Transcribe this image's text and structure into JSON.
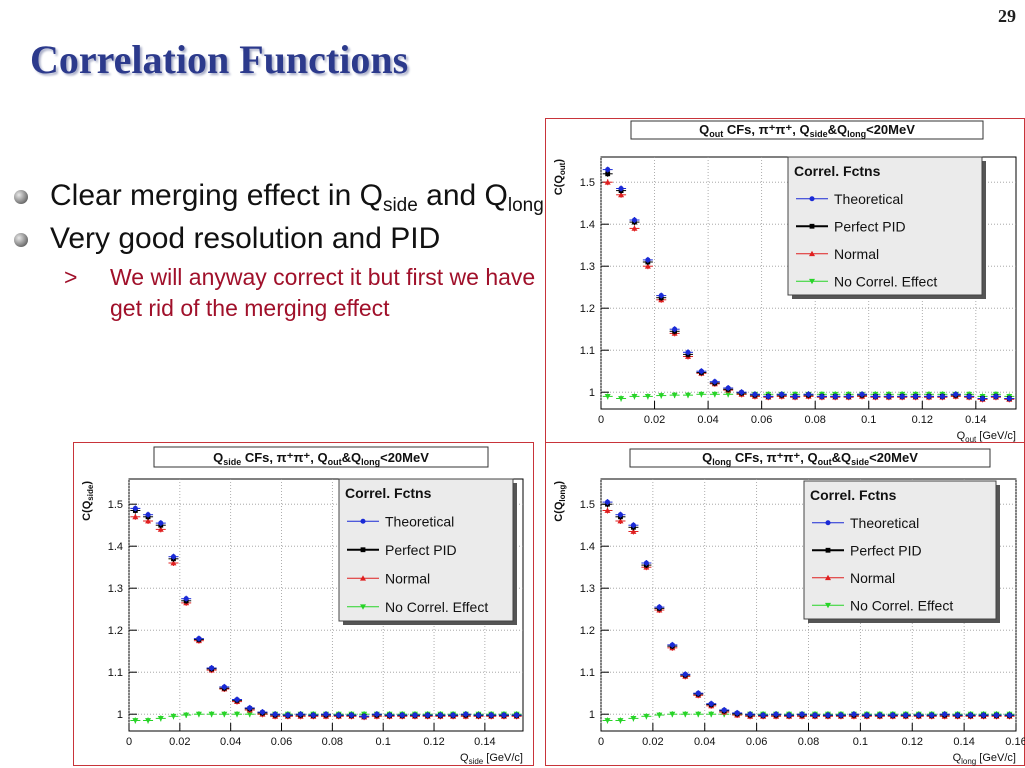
{
  "slide": {
    "number": "29",
    "title": "Correlation Functions",
    "bullets": [
      {
        "text_a": "Clear merging effect in Q",
        "sub_a": "side",
        "text_b": " and Q",
        "sub_b": "long"
      },
      {
        "text": "Very good resolution and PID"
      }
    ],
    "subbullet": {
      "marker": ">",
      "text": "We will anyway correct it but first we have get rid of the merging effect"
    }
  },
  "chart_data": [
    {
      "id": "qout",
      "type": "scatter",
      "title": {
        "q": "Q",
        "q_sub": "out",
        "mid": " CFs, π⁺π⁺, Q",
        "a_sub": "side",
        "amp": "&Q",
        "b_sub": "long",
        "end": "<20MeV"
      },
      "ylabel": {
        "pre": "C(Q",
        "sub": "out",
        "post": ")"
      },
      "xlabel": {
        "pre": "Q",
        "sub": "out",
        "post": " [GeV/c]"
      },
      "xlim": [
        0,
        0.155
      ],
      "ylim": [
        0.96,
        1.56
      ],
      "xticks": [
        0,
        0.02,
        0.04,
        0.06,
        0.08,
        0.1,
        0.12,
        0.14
      ],
      "xtick_labels": [
        "0",
        "0.02",
        "0.04",
        "0.06",
        "0.08",
        "0.1",
        "0.12",
        "0.14"
      ],
      "yticks": [
        1,
        1.1,
        1.2,
        1.3,
        1.4,
        1.5
      ],
      "ytick_labels": [
        "1",
        "1.1",
        "1.2",
        "1.3",
        "1.4",
        "1.5"
      ],
      "legend": {
        "title": "Correl. Fctns",
        "position": "top-right",
        "entries": [
          "Theoretical",
          "Perfect PID",
          "Normal",
          "No Correl. Effect"
        ]
      },
      "x": [
        0.0025,
        0.0075,
        0.0125,
        0.0175,
        0.0225,
        0.0275,
        0.0325,
        0.0375,
        0.0425,
        0.0475,
        0.0525,
        0.0575,
        0.0625,
        0.0675,
        0.0725,
        0.0775,
        0.0825,
        0.0875,
        0.0925,
        0.0975,
        0.1025,
        0.1075,
        0.1125,
        0.1175,
        0.1225,
        0.1275,
        0.1325,
        0.1375,
        0.1425,
        0.1475,
        0.1525
      ],
      "series": [
        {
          "name": "Theoretical",
          "color": "#1a2ad6",
          "marker": "circle",
          "values": [
            1.53,
            1.485,
            1.41,
            1.315,
            1.23,
            1.15,
            1.095,
            1.05,
            1.025,
            1.01,
            1.0,
            0.995,
            0.99,
            0.995,
            0.99,
            0.995,
            0.99,
            0.99,
            0.99,
            0.995,
            0.99,
            0.99,
            0.99,
            0.99,
            0.99,
            0.99,
            0.995,
            0.99,
            0.985,
            0.99,
            0.985
          ]
        },
        {
          "name": "Perfect PID",
          "color": "#000000",
          "marker": "square",
          "values": [
            1.52,
            1.48,
            1.405,
            1.31,
            1.225,
            1.145,
            1.09,
            1.047,
            1.022,
            1.007,
            0.998,
            0.993,
            0.99,
            0.993,
            0.99,
            0.993,
            0.99,
            0.99,
            0.99,
            0.993,
            0.99,
            0.99,
            0.99,
            0.99,
            0.99,
            0.99,
            0.993,
            0.99,
            0.985,
            0.99,
            0.985
          ]
        },
        {
          "name": "Normal",
          "color": "#e02020",
          "marker": "triangle-up",
          "values": [
            1.5,
            1.47,
            1.39,
            1.3,
            1.22,
            1.14,
            1.085,
            1.045,
            1.02,
            1.005,
            0.995,
            0.99,
            0.988,
            0.99,
            0.988,
            0.99,
            0.988,
            0.988,
            0.988,
            0.99,
            0.988,
            0.988,
            0.988,
            0.988,
            0.988,
            0.988,
            0.99,
            0.988,
            0.983,
            0.988,
            0.983
          ]
        },
        {
          "name": "No Correl. Effect",
          "color": "#28d428",
          "marker": "triangle-down",
          "values": [
            0.99,
            0.985,
            0.99,
            0.99,
            0.992,
            0.993,
            0.993,
            0.995,
            0.995,
            0.995,
            0.995,
            0.995,
            0.995,
            0.995,
            0.995,
            0.995,
            0.995,
            0.995,
            0.995,
            0.995,
            0.995,
            0.995,
            0.995,
            0.995,
            0.995,
            0.995,
            0.995,
            0.995,
            0.99,
            0.995,
            0.99
          ]
        }
      ]
    },
    {
      "id": "qside",
      "type": "scatter",
      "title": {
        "q": "Q",
        "q_sub": "side",
        "mid": " CFs, π⁺π⁺, Q",
        "a_sub": "out",
        "amp": "&Q",
        "b_sub": "long",
        "end": "<20MeV"
      },
      "ylabel": {
        "pre": "C(Q",
        "sub": "side",
        "post": ")"
      },
      "xlabel": {
        "pre": "Q",
        "sub": "side",
        "post": " [GeV/c]"
      },
      "xlim": [
        0,
        0.155
      ],
      "ylim": [
        0.96,
        1.56
      ],
      "xticks": [
        0,
        0.02,
        0.04,
        0.06,
        0.08,
        0.1,
        0.12,
        0.14
      ],
      "xtick_labels": [
        "0",
        "0.02",
        "0.04",
        "0.06",
        "0.08",
        "0.1",
        "0.12",
        "0.14"
      ],
      "yticks": [
        1,
        1.1,
        1.2,
        1.3,
        1.4,
        1.5
      ],
      "ytick_labels": [
        "1",
        "1.1",
        "1.2",
        "1.3",
        "1.4",
        "1.5"
      ],
      "legend": {
        "title": "Correl. Fctns",
        "position": "top-right",
        "entries": [
          "Theoretical",
          "Perfect PID",
          "Normal",
          "No Correl. Effect"
        ]
      },
      "x": [
        0.0025,
        0.0075,
        0.0125,
        0.0175,
        0.0225,
        0.0275,
        0.0325,
        0.0375,
        0.0425,
        0.0475,
        0.0525,
        0.0575,
        0.0625,
        0.0675,
        0.0725,
        0.0775,
        0.0825,
        0.0875,
        0.0925,
        0.0975,
        0.1025,
        0.1075,
        0.1125,
        0.1175,
        0.1225,
        0.1275,
        0.1325,
        0.1375,
        0.1425,
        0.1475,
        0.1525
      ],
      "series": [
        {
          "name": "Theoretical",
          "color": "#1a2ad6",
          "marker": "circle",
          "values": [
            1.49,
            1.475,
            1.455,
            1.375,
            1.275,
            1.18,
            1.11,
            1.065,
            1.035,
            1.015,
            1.005,
            1.0,
            0.998,
            1.0,
            0.998,
            1.0,
            0.998,
            0.998,
            0.995,
            1.0,
            0.998,
            0.998,
            0.998,
            0.998,
            0.998,
            0.998,
            1.0,
            0.998,
            0.998,
            0.998,
            0.998
          ]
        },
        {
          "name": "Perfect PID",
          "color": "#000000",
          "marker": "square",
          "values": [
            1.485,
            1.47,
            1.45,
            1.37,
            1.27,
            1.178,
            1.108,
            1.062,
            1.033,
            1.013,
            1.003,
            0.998,
            0.997,
            0.998,
            0.997,
            0.998,
            0.997,
            0.997,
            0.995,
            0.998,
            0.997,
            0.997,
            0.997,
            0.997,
            0.997,
            0.997,
            0.998,
            0.997,
            0.997,
            0.997,
            0.997
          ]
        },
        {
          "name": "Normal",
          "color": "#e02020",
          "marker": "triangle-up",
          "values": [
            1.47,
            1.46,
            1.44,
            1.36,
            1.265,
            1.175,
            1.105,
            1.06,
            1.03,
            1.01,
            1.0,
            0.995,
            0.995,
            0.995,
            0.995,
            0.995,
            0.995,
            0.995,
            0.993,
            0.995,
            0.995,
            0.995,
            0.995,
            0.995,
            0.995,
            0.995,
            0.995,
            0.995,
            0.995,
            0.995,
            0.995
          ]
        },
        {
          "name": "No Correl. Effect",
          "color": "#28d428",
          "marker": "triangle-down",
          "values": [
            0.985,
            0.985,
            0.99,
            0.995,
            0.998,
            1.0,
            1.0,
            1.0,
            1.0,
            1.0,
            1.0,
            1.0,
            1.0,
            1.0,
            1.0,
            1.0,
            1.0,
            1.0,
            1.0,
            1.0,
            1.0,
            1.0,
            1.0,
            1.0,
            1.0,
            1.0,
            1.0,
            1.0,
            1.0,
            1.0,
            1.0
          ]
        }
      ]
    },
    {
      "id": "qlong",
      "type": "scatter",
      "title": {
        "q": "Q",
        "q_sub": "long",
        "mid": " CFs, π⁺π⁺, Q",
        "a_sub": "out",
        "amp": "&Q",
        "b_sub": "side",
        "end": "<20MeV"
      },
      "ylabel": {
        "pre": "C(Q",
        "sub": "long",
        "post": ")"
      },
      "xlabel": {
        "pre": "Q",
        "sub": "long",
        "post": " [GeV/c]"
      },
      "xlim": [
        0,
        0.16
      ],
      "ylim": [
        0.96,
        1.56
      ],
      "xticks": [
        0,
        0.02,
        0.04,
        0.06,
        0.08,
        0.1,
        0.12,
        0.14,
        0.16
      ],
      "xtick_labels": [
        "0",
        "0.02",
        "0.04",
        "0.06",
        "0.08",
        "0.1",
        "0.12",
        "0.14",
        "0.16"
      ],
      "yticks": [
        1,
        1.1,
        1.2,
        1.3,
        1.4,
        1.5
      ],
      "ytick_labels": [
        "1",
        "1.1",
        "1.2",
        "1.3",
        "1.4",
        "1.5"
      ],
      "legend": {
        "title": "Correl. Fctns",
        "position": "top-right",
        "entries": [
          "Theoretical",
          "Perfect PID",
          "Normal",
          "No Correl. Effect"
        ]
      },
      "x": [
        0.0025,
        0.0075,
        0.0125,
        0.0175,
        0.0225,
        0.0275,
        0.0325,
        0.0375,
        0.0425,
        0.0475,
        0.0525,
        0.0575,
        0.0625,
        0.0675,
        0.0725,
        0.0775,
        0.0825,
        0.0875,
        0.0925,
        0.0975,
        0.1025,
        0.1075,
        0.1125,
        0.1175,
        0.1225,
        0.1275,
        0.1325,
        0.1375,
        0.1425,
        0.1475,
        0.1525,
        0.1575
      ],
      "series": [
        {
          "name": "Theoretical",
          "color": "#1a2ad6",
          "marker": "circle",
          "values": [
            1.505,
            1.475,
            1.45,
            1.36,
            1.255,
            1.165,
            1.095,
            1.05,
            1.025,
            1.01,
            1.003,
            1.0,
            0.998,
            1.0,
            0.998,
            1.0,
            0.998,
            0.998,
            0.998,
            1.0,
            0.998,
            0.998,
            0.998,
            0.998,
            0.998,
            0.998,
            1.0,
            0.998,
            0.998,
            0.998,
            0.998,
            0.998
          ]
        },
        {
          "name": "Perfect PID",
          "color": "#000000",
          "marker": "square",
          "values": [
            1.5,
            1.47,
            1.445,
            1.355,
            1.252,
            1.162,
            1.093,
            1.048,
            1.023,
            1.008,
            1.001,
            0.998,
            0.997,
            0.998,
            0.997,
            0.998,
            0.997,
            0.997,
            0.997,
            0.998,
            0.997,
            0.997,
            0.997,
            0.997,
            0.997,
            0.997,
            0.998,
            0.997,
            0.997,
            0.997,
            0.997,
            0.997
          ]
        },
        {
          "name": "Normal",
          "color": "#e02020",
          "marker": "triangle-up",
          "values": [
            1.485,
            1.46,
            1.435,
            1.35,
            1.248,
            1.158,
            1.09,
            1.045,
            1.02,
            1.005,
            0.998,
            0.995,
            0.995,
            0.995,
            0.995,
            0.995,
            0.995,
            0.995,
            0.995,
            0.995,
            0.995,
            0.995,
            0.995,
            0.995,
            0.995,
            0.995,
            0.995,
            0.995,
            0.995,
            0.995,
            0.995,
            0.995
          ]
        },
        {
          "name": "No Correl. Effect",
          "color": "#28d428",
          "marker": "triangle-down",
          "values": [
            0.985,
            0.985,
            0.99,
            0.995,
            0.998,
            1.0,
            1.0,
            1.0,
            1.0,
            1.0,
            1.0,
            1.0,
            1.0,
            1.0,
            1.0,
            1.0,
            1.0,
            1.0,
            1.0,
            1.0,
            1.0,
            1.0,
            1.0,
            1.0,
            1.0,
            1.0,
            1.0,
            1.0,
            1.0,
            1.0,
            1.0,
            1.0
          ]
        }
      ]
    }
  ]
}
